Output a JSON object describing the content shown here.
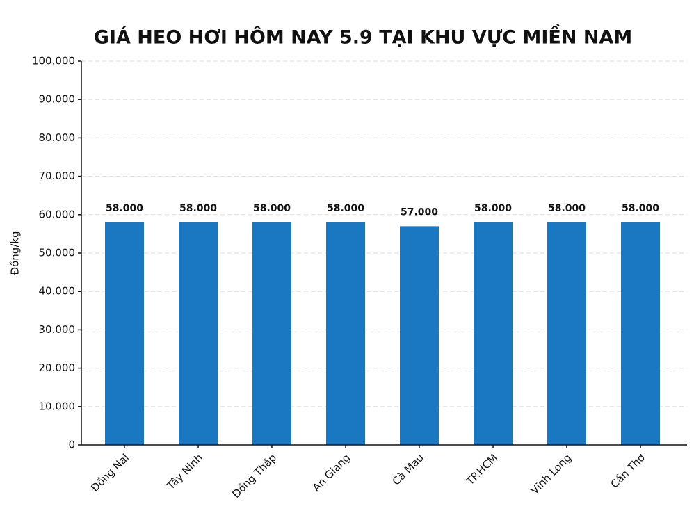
{
  "chart_data": {
    "type": "bar",
    "title": "GIÁ HEO HƠI HÔM NAY 5.9 TẠI KHU VỰC MIỀN NAM",
    "y_label": "Đồng/kg",
    "categories": [
      "Đồng Nai",
      "Tây Ninh",
      "Đồng Tháp",
      "An Giang",
      "Cà Mau",
      "TP.HCM",
      "Vĩnh Long",
      "Cần Thơ"
    ],
    "values": [
      58000,
      58000,
      58000,
      58000,
      57000,
      58000,
      58000,
      58000
    ],
    "value_labels": [
      "58.000",
      "58.000",
      "58.000",
      "58.000",
      "57.000",
      "58.000",
      "58.000",
      "58.000"
    ],
    "color": "#1a78c2",
    "ylim": [
      0,
      100000
    ],
    "yticks": [
      0,
      {
        "value": 10000,
        "label": "10.000"
      },
      {
        "value": 20000,
        "label": "20.000"
      },
      {
        "value": 30000,
        "label": "30.000"
      },
      {
        "value": 40000,
        "label": "40.000"
      },
      {
        "value": 50000,
        "label": "50.000"
      },
      {
        "value": 60000,
        "label": "60.000"
      },
      {
        "value": 70000,
        "label": "70.000"
      },
      {
        "value": 80000,
        "label": "80.000"
      },
      {
        "value": 90000,
        "label": "90.000"
      },
      {
        "value": 100000,
        "label": "100.000"
      }
    ],
    "grid": true
  }
}
